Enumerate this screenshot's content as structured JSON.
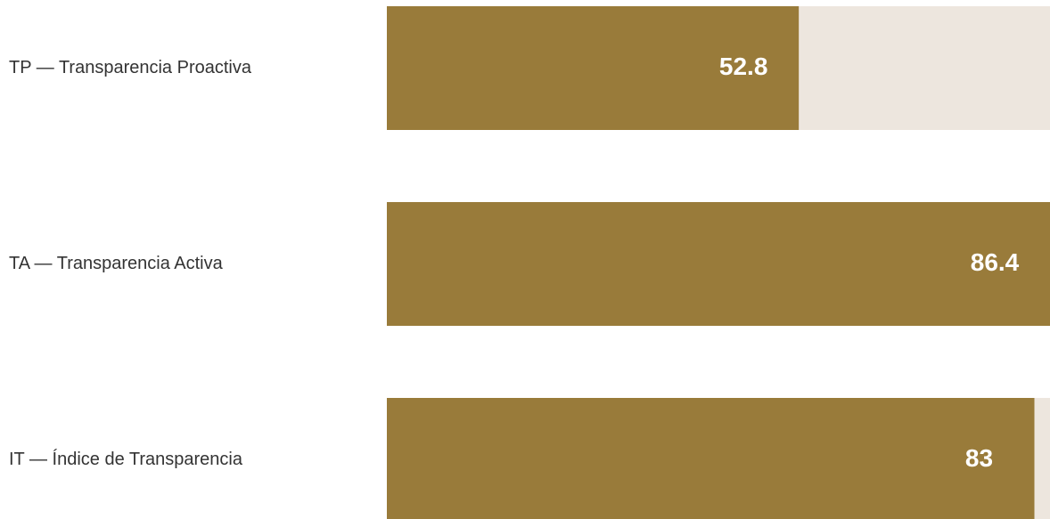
{
  "chart_data": {
    "type": "bar",
    "orientation": "horizontal",
    "categories": [
      "TP — Transparencia Proactiva",
      "TA — Transparencia Activa",
      "IT — Índice de Transparencia"
    ],
    "values": [
      52.8,
      86.4,
      83
    ],
    "value_labels": [
      "52.8",
      "86.4",
      "83"
    ],
    "xlim": [
      0,
      85
    ],
    "grid": false,
    "legend": "none",
    "colors": {
      "bar": "#997B3A",
      "track": "#EDE6DE",
      "value_text": "#FFFFFF",
      "category_text": "#333333"
    }
  }
}
